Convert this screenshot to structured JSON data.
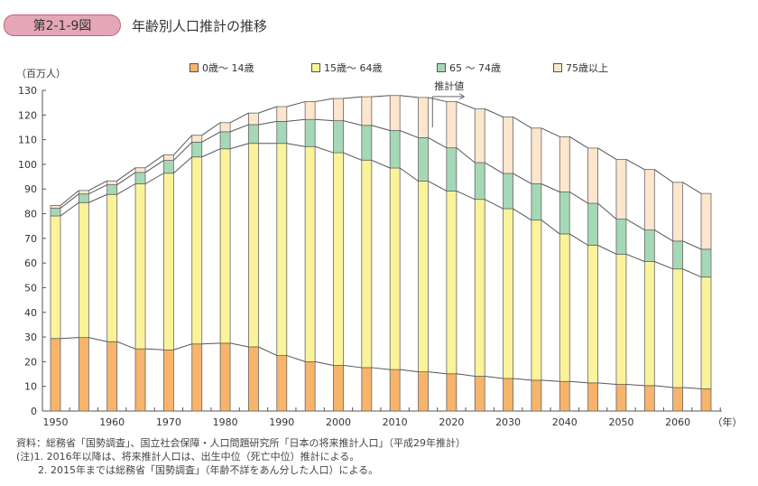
{
  "header": {
    "figure_no": "第2-1-9図",
    "title": "年齢別人口推計の推移"
  },
  "colors": {
    "age0_14": "#f7b46a",
    "age15_64": "#fbf39a",
    "age65_74": "#a5d8b6",
    "age75": "#fde6cc"
  },
  "chart_data": {
    "type": "bar",
    "stacked": true,
    "title": "年齢別人口推計の推移",
    "ylabel": "（百万人）",
    "xlabel": "（年）",
    "ylim": [
      0,
      130
    ],
    "yticks": [
      0,
      10,
      20,
      30,
      40,
      50,
      60,
      70,
      80,
      90,
      100,
      110,
      120,
      130
    ],
    "xtick_labels": [
      "1950",
      "1960",
      "1970",
      "1980",
      "1990",
      "2000",
      "2010",
      "2020",
      "2030",
      "2040",
      "2050",
      "2060"
    ],
    "categories": [
      1950,
      1955,
      1960,
      1965,
      1970,
      1975,
      1980,
      1985,
      1990,
      1995,
      2000,
      2005,
      2010,
      2015,
      2020,
      2025,
      2030,
      2035,
      2040,
      2045,
      2050,
      2055,
      2060,
      2065
    ],
    "series": [
      {
        "name": "0歳～ 14歳",
        "values": [
          29.4,
          29.8,
          28.1,
          25.2,
          24.8,
          27.2,
          27.5,
          26.0,
          22.5,
          20.0,
          18.5,
          17.6,
          16.8,
          15.9,
          15.1,
          14.1,
          13.2,
          12.5,
          12.0,
          11.4,
          10.8,
          10.3,
          9.5,
          9.0
        ]
      },
      {
        "name": "15歳～ 64歳",
        "values": [
          49.7,
          54.7,
          59.7,
          66.9,
          71.6,
          75.8,
          78.8,
          82.5,
          86.0,
          87.2,
          86.2,
          84.1,
          81.7,
          77.3,
          74.1,
          71.7,
          68.8,
          64.9,
          59.8,
          55.8,
          52.8,
          50.3,
          48.1,
          45.3
        ]
      },
      {
        "name": "65 ～ 74歳",
        "values": [
          3.1,
          3.5,
          3.9,
          4.6,
          5.2,
          6.0,
          6.9,
          7.6,
          8.9,
          11.0,
          13.0,
          14.1,
          15.2,
          17.6,
          17.5,
          14.9,
          14.3,
          14.7,
          17.0,
          17.0,
          14.2,
          12.8,
          11.3,
          11.3
        ]
      },
      {
        "name": "75歳以上",
        "values": [
          1.1,
          1.4,
          1.6,
          1.9,
          2.2,
          2.8,
          3.7,
          4.7,
          6.0,
          7.2,
          9.0,
          11.6,
          14.2,
          16.3,
          18.7,
          21.8,
          22.9,
          22.6,
          22.4,
          22.4,
          24.2,
          24.5,
          23.8,
          22.6
        ]
      }
    ],
    "annotations": [
      {
        "text": "推計値",
        "from": 2016
      }
    ],
    "legend_position": "top"
  },
  "notes": {
    "source": "資料：総務省「国勢調査」、国立社会保障・人口問題研究所「日本の将来推計人口」（平成29年推計）",
    "note1": "(注)1. 2016年以降は、将来推計人口は、出生中位（死亡中位）推計による。",
    "note2": "2. 2015年までは総務省「国勢調査」（年齢不詳をあん分した人口）による。"
  }
}
